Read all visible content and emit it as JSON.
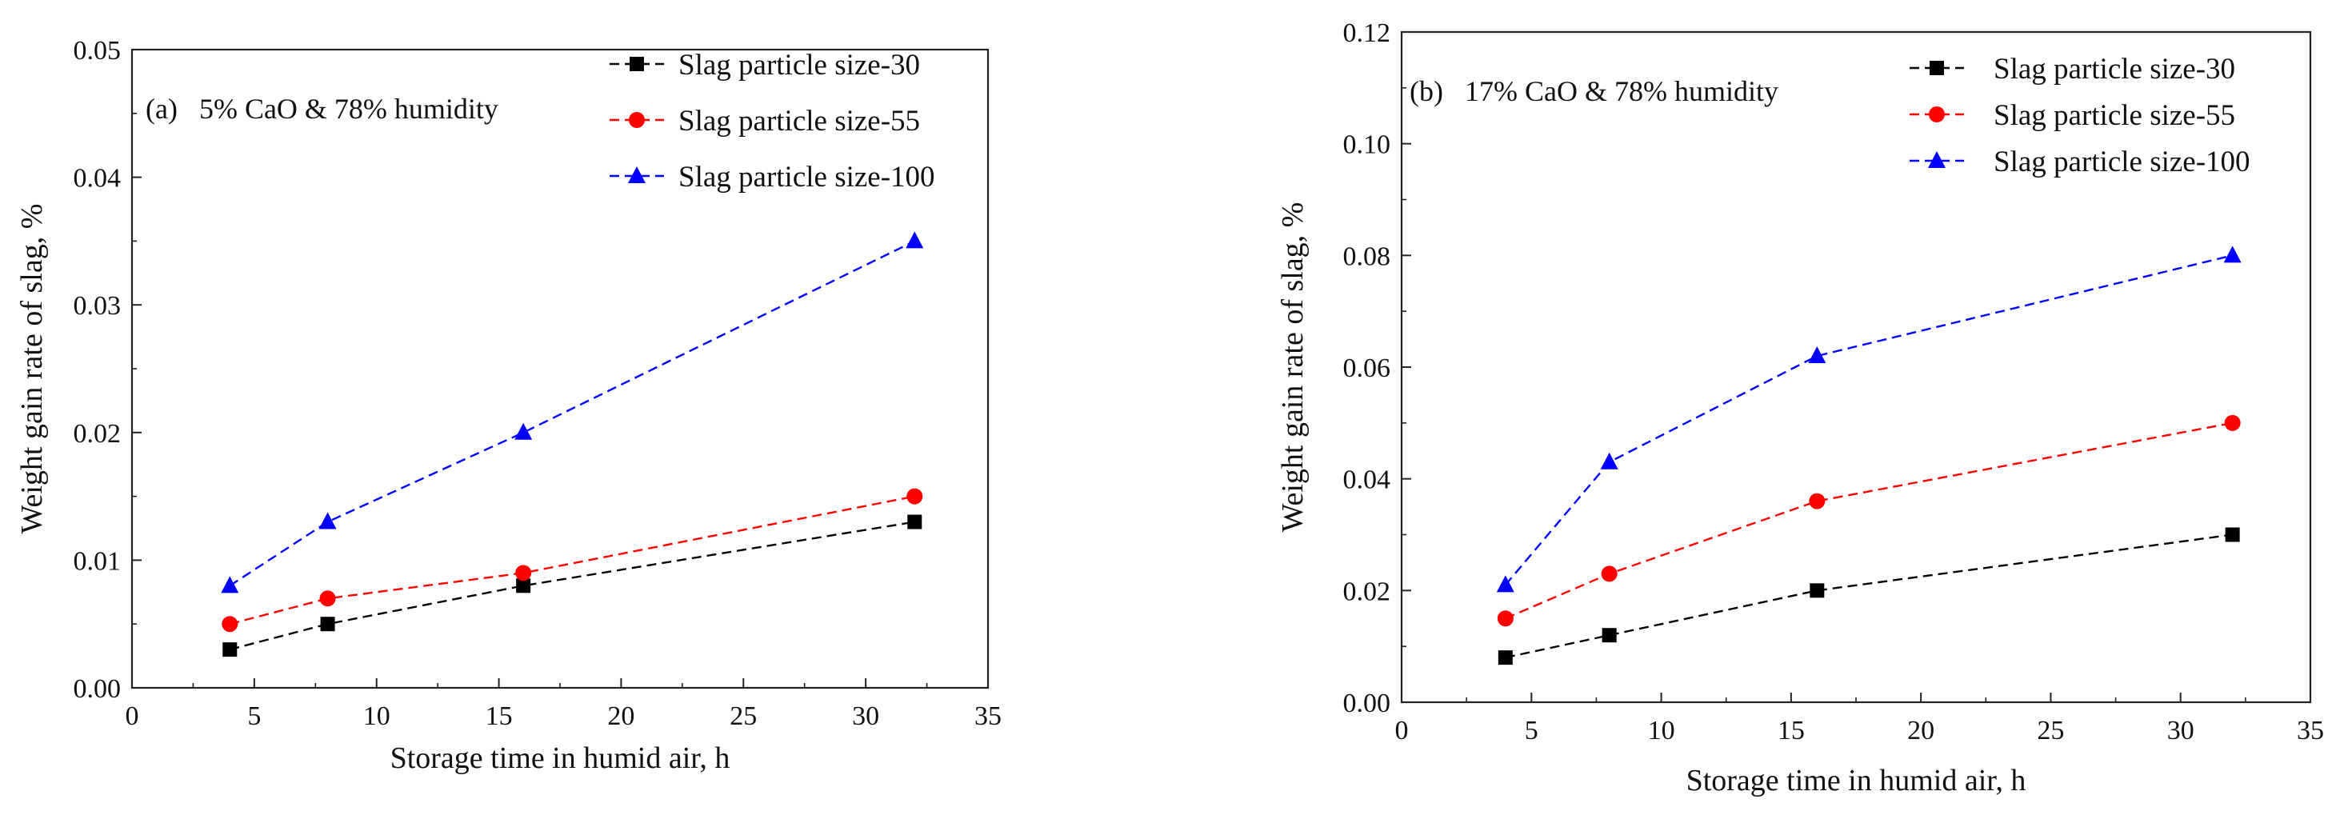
{
  "chart_data": [
    {
      "type": "line",
      "title": "(a)   5% CaO & 78% humidity",
      "xlabel": "Storage time in humid air, h",
      "ylabel": "Weight gain rate of slag, %",
      "xlim": [
        0,
        35
      ],
      "ylim": [
        0,
        0.05
      ],
      "x_ticks": [
        "0",
        "5",
        "10",
        "15",
        "20",
        "25",
        "30",
        "35"
      ],
      "y_ticks": [
        "0.00",
        "0.01",
        "0.02",
        "0.03",
        "0.04",
        "0.05"
      ],
      "legend_position": "top-right",
      "x": [
        4,
        8,
        16,
        32
      ],
      "series": [
        {
          "name": "Slag particle size-30",
          "values": [
            0.003,
            0.005,
            0.008,
            0.013
          ],
          "color": "#000000",
          "marker": "square"
        },
        {
          "name": "Slag particle size-55",
          "values": [
            0.005,
            0.007,
            0.009,
            0.015
          ],
          "color": "#ff0000",
          "marker": "circle"
        },
        {
          "name": "Slag particle size-100",
          "values": [
            0.008,
            0.013,
            0.02,
            0.035
          ],
          "color": "#0000ff",
          "marker": "triangle"
        }
      ]
    },
    {
      "type": "line",
      "title": "(b)   17% CaO & 78% humidity",
      "xlabel": "Storage time in humid air, h",
      "ylabel": "Weight gain rate of slag, %",
      "xlim": [
        0,
        35
      ],
      "ylim": [
        0,
        0.12
      ],
      "x_ticks": [
        "0",
        "5",
        "10",
        "15",
        "20",
        "25",
        "30",
        "35"
      ],
      "y_ticks": [
        "0.00",
        "0.02",
        "0.04",
        "0.06",
        "0.08",
        "0.10",
        "0.12"
      ],
      "legend_position": "top-right",
      "x": [
        4,
        8,
        16,
        32
      ],
      "series": [
        {
          "name": "Slag particle size-30",
          "values": [
            0.008,
            0.012,
            0.02,
            0.03
          ],
          "color": "#000000",
          "marker": "square"
        },
        {
          "name": "Slag particle size-55",
          "values": [
            0.015,
            0.023,
            0.036,
            0.05
          ],
          "color": "#ff0000",
          "marker": "circle"
        },
        {
          "name": "Slag particle size-100",
          "values": [
            0.021,
            0.043,
            0.062,
            0.08
          ],
          "color": "#0000ff",
          "marker": "triangle"
        }
      ]
    }
  ]
}
